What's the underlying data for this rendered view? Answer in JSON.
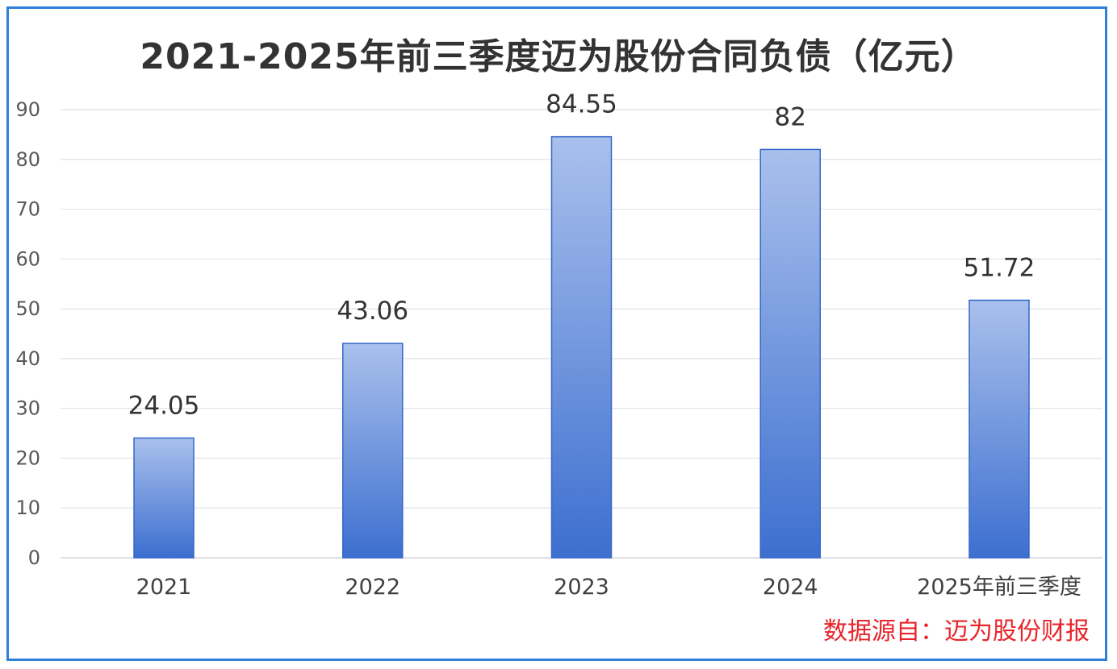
{
  "chart_data": {
    "type": "bar",
    "title": "2021-2025年前三季度迈为股份合同负债（亿元）",
    "categories": [
      "2021",
      "2022",
      "2023",
      "2024",
      "2025年前三季度"
    ],
    "values": [
      24.05,
      43.06,
      84.55,
      82,
      51.72
    ],
    "value_labels": [
      "24.05",
      "43.06",
      "84.55",
      "82",
      "51.72"
    ],
    "ylim": [
      0,
      90
    ],
    "yticks": [
      0,
      10,
      20,
      30,
      40,
      50,
      60,
      70,
      80,
      90
    ],
    "grid": true,
    "colors": {
      "bar_top": "#a9c0ec",
      "bar_bottom": "#3d6fd0",
      "bar_edge": "#3466c8",
      "grid": "#dde3ea",
      "title": "#333333",
      "source": "#e8252b",
      "frame": "#2f80d8"
    },
    "source_note": "数据源自：迈为股份财报"
  }
}
